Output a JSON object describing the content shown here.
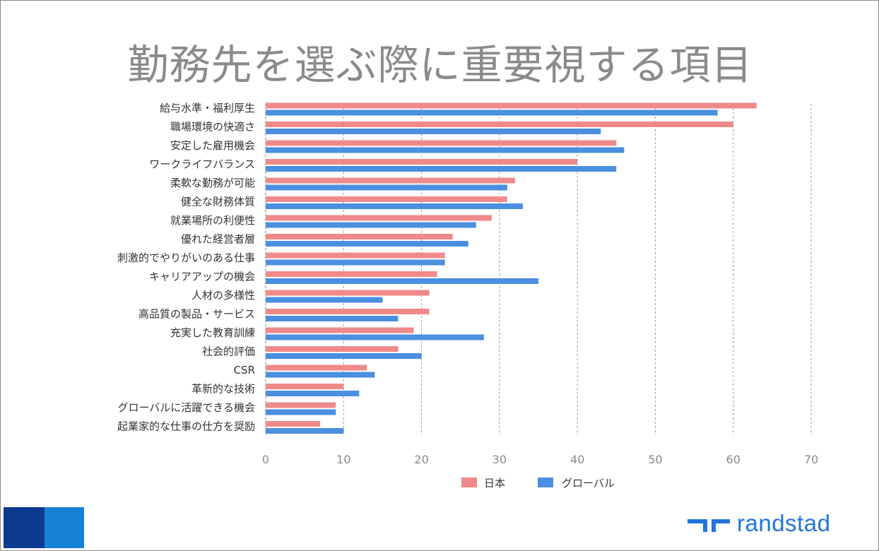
{
  "slide": {
    "title": "勤務先を選ぶ際に重要視する項目",
    "brand": {
      "name": "randstad",
      "color": "#2175d9",
      "icon": "randstad-logo-icon"
    },
    "corner_colors": [
      "#0d3a91",
      "#1682d6"
    ]
  },
  "chart_data": {
    "type": "bar",
    "orientation": "horizontal",
    "title": "",
    "xlabel": "",
    "ylabel": "",
    "xlim": [
      0,
      70
    ],
    "ticks": [
      0,
      10,
      20,
      30,
      40,
      50,
      60,
      70
    ],
    "grid": "vertical-dashed",
    "legend": "bottom",
    "categories": [
      "給与水準・福利厚生",
      "職場環境の快適さ",
      "安定した雇用機会",
      "ワークライフバランス",
      "柔軟な勤務が可能",
      "健全な財務体質",
      "就業場所の利便性",
      "優れた経営者層",
      "刺激的でやりがいのある仕事",
      "キャリアアップの機会",
      "人材の多様性",
      "高品質の製品・サービス",
      "充実した教育訓練",
      "社会的評価",
      "CSR",
      "革新的な技術",
      "グローバルに活躍できる機会",
      "起業家的な仕事の仕方を奨励"
    ],
    "series": [
      {
        "name": "日本",
        "color": "#f08a8a",
        "values": [
          63,
          60,
          45,
          40,
          32,
          31,
          29,
          24,
          23,
          22,
          21,
          21,
          19,
          17,
          13,
          10,
          9,
          7
        ]
      },
      {
        "name": "グローバル",
        "color": "#4a8fe0",
        "values": [
          58,
          43,
          46,
          45,
          31,
          33,
          27,
          26,
          23,
          35,
          15,
          17,
          28,
          20,
          14,
          12,
          9,
          10
        ]
      }
    ]
  }
}
